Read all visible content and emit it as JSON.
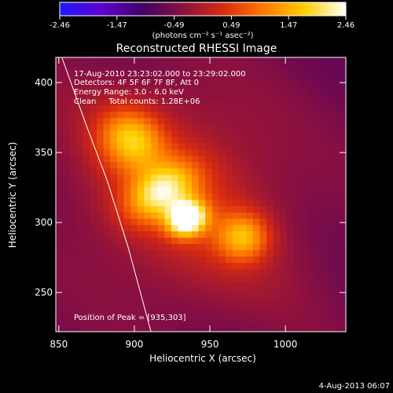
{
  "colorbar": {
    "tick_labels": [
      "-2.46",
      "-1.47",
      "-0.49",
      "0.49",
      "1.47",
      "2.46"
    ],
    "unit_label": "(photons cm⁻² s⁻¹ asec⁻²)",
    "colormap": [
      "#1a1aff",
      "#6000d0",
      "#40006a",
      "#8a1040",
      "#d82a10",
      "#ff7a00",
      "#ffd000",
      "#ffffff"
    ]
  },
  "title": "Reconstructed RHESSI Image",
  "info": {
    "time_range": "17-Aug-2010 23:23:02.000 to 23:29:02.000",
    "detectors": "Detectors: 4F 5F 6F 7F 8F, Att 0",
    "energy": "Energy Range: 3.0 - 6.0 keV",
    "clean": "Clean     Total counts: 1.28E+06",
    "peak": "Position of Peak = [935,303]"
  },
  "axes": {
    "xlabel": "Heliocentric X (arcsec)",
    "ylabel": "Heliocentric Y (arcsec)",
    "xlim": [
      848,
      1040
    ],
    "ylim": [
      222,
      418
    ],
    "xticks": [
      850,
      900,
      950,
      1000
    ],
    "yticks": [
      250,
      300,
      350,
      400
    ]
  },
  "image": {
    "sources": [
      {
        "x": 935,
        "y": 303,
        "sx": 9,
        "sy": 8,
        "amp": 1.0
      },
      {
        "x": 918,
        "y": 322,
        "sx": 18,
        "sy": 12,
        "amp": 0.62
      },
      {
        "x": 898,
        "y": 360,
        "sx": 14,
        "sy": 16,
        "amp": 0.55
      },
      {
        "x": 972,
        "y": 290,
        "sx": 12,
        "sy": 12,
        "amp": 0.5
      },
      {
        "x": 930,
        "y": 320,
        "sx": 46,
        "sy": 60,
        "amp": 0.32
      }
    ],
    "limb_points": [
      [
        852,
        418
      ],
      [
        868,
        370
      ],
      [
        882,
        330
      ],
      [
        896,
        282
      ],
      [
        911,
        222
      ]
    ]
  },
  "timestamp": "4-Aug-2013 06:07"
}
